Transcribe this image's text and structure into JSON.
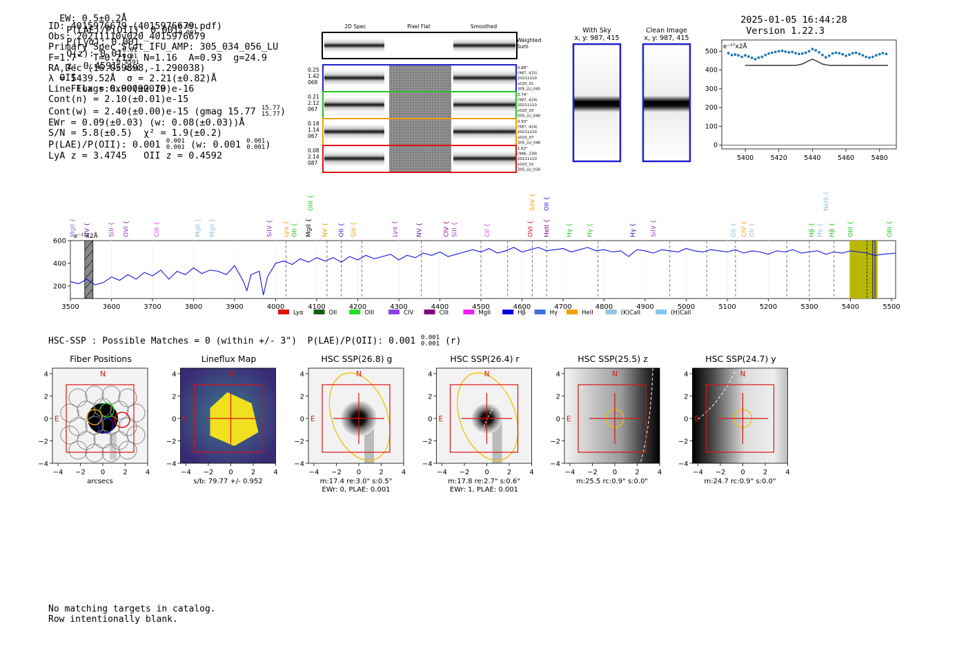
{
  "header": {
    "ew": "EW: 0.5±0.2Å",
    "plae": "P(LAE)/P(OII): 0.001",
    "plae_sup": "0.001",
    "plae_sub": "0.001",
    "plya": "P(Lyα): 0.001",
    "qz": "Q(z): 0.01",
    "qz_sup": "0.01",
    "qz_sub": "0.01",
    "z": "z: 0.4591",
    "z_sup": "0.4591",
    "z_sub": "0.4591",
    "line": "OII",
    "flags": "Flags:0x00000019",
    "datetime": "2025-01-05 16:44:28",
    "version": "Version 1.22.3"
  },
  "info": {
    "id": "ID: 4015976679 (4015976679.pdf)",
    "obs": "Obs: 20211110v020_4015976679",
    "primary": "Primary Spec_Slot_IFU_AMP: 305_034_056_LU",
    "fta": "F=1.7\"  T=0.219  N=1.16  A=0.93  g=24.9",
    "radec": "RA,Dec (16.059898,-1.290038)",
    "lambda": "λ = 5439.52Å  σ = 2.21(±0.82)Å",
    "lineflux": "LineFlux = 8.90(±2.70)e-16",
    "contn": "Cont(n) = 2.10(±0.01)e-15",
    "contw": "Cont(w) = 2.40(±0.00)e-15 (gmag 15.77",
    "contw_sup": "15.77",
    "contw_sub": "15.77",
    "ewr": "EWr = 0.09(±0.03) (w: 0.08(±0.03))Å",
    "sn": "S/N = 5.8(±0.5)  χ² = 1.9(±0.2)",
    "plae": "P(LAE)/P(OII): 0.001",
    "plae_sup": "0.001",
    "plae_sub": "0.001",
    "plae_w": "(w: 0.001",
    "plae_w_sup": "0.001",
    "plae_w_sub": "0.001",
    "lya": "LyA z = 3.4745   OII z = 0.4592"
  },
  "cutouts": {
    "col_2d": "2D Spec",
    "col_flat": "Pixel Flat",
    "col_smooth": "Smoothed",
    "weighted": "Weighted",
    "sum": "Sum",
    "rows": [
      {
        "color": "#1f1fd0",
        "left": [
          "0.25",
          "1.42",
          "068"
        ],
        "right": [
          "0.88\"",
          "(987, 415)",
          "20211110",
          "v020_01",
          "305_LU_045"
        ]
      },
      {
        "color": "#20c020",
        "left": [
          "0.21",
          "2.12",
          "067"
        ],
        "right": [
          "0.74\"",
          "(987, 424)",
          "20211110",
          "v020_03",
          "305_LU_046"
        ]
      },
      {
        "color": "#f0a000",
        "left": [
          "0.18",
          "1.14",
          "067"
        ],
        "right": [
          "0.93\"",
          "(987, 424)",
          "20211110",
          "v020_07",
          "305_LU_046"
        ]
      },
      {
        "color": "#e01010",
        "left": [
          "0.08",
          "2.14",
          "087"
        ],
        "right": [
          "1.62\"",
          "(986, 239)",
          "20211110",
          "v020_02",
          "305_LU_026"
        ]
      }
    ]
  },
  "sky": {
    "with_sky": "With Sky",
    "with_sky_xy": "x, y: 987, 415",
    "clean": "Clean Image",
    "clean_xy": "x, y: 987, 415"
  },
  "zoom_chart": {
    "unit": "e⁻¹⁷x2Å",
    "yticks": [
      "0",
      "100",
      "200",
      "300",
      "400",
      "500"
    ],
    "xticks": [
      "5400",
      "5420",
      "5440",
      "5460",
      "5480"
    ]
  },
  "chart_data": [
    {
      "type": "scatter",
      "x": [
        5390,
        5392,
        5394,
        5396,
        5398,
        5400,
        5402,
        5404,
        5406,
        5408,
        5410,
        5412,
        5414,
        5416,
        5418,
        5420,
        5422,
        5424,
        5426,
        5428,
        5430,
        5432,
        5434,
        5436,
        5438,
        5440,
        5442,
        5444,
        5446,
        5448,
        5450,
        5452,
        5454,
        5456,
        5458,
        5460,
        5462,
        5464,
        5466,
        5468,
        5470,
        5472,
        5474,
        5476,
        5478,
        5480,
        5482,
        5484
      ],
      "values": [
        490,
        480,
        482,
        478,
        470,
        478,
        472,
        465,
        458,
        466,
        470,
        480,
        488,
        492,
        496,
        500,
        502,
        498,
        494,
        496,
        490,
        486,
        488,
        492,
        500,
        512,
        505,
        494,
        480,
        468,
        476,
        488,
        492,
        490,
        484,
        476,
        482,
        490,
        492,
        486,
        478,
        470,
        466,
        470,
        478,
        484,
        490,
        486
      ],
      "model_x": [
        5400,
        5430,
        5434,
        5438,
        5440,
        5442,
        5446,
        5450,
        5485
      ],
      "model_y": [
        425,
        425,
        432,
        450,
        458,
        450,
        432,
        425,
        425
      ],
      "ylim": [
        -20,
        560
      ]
    },
    {
      "type": "line",
      "xlim": [
        3500,
        5510
      ],
      "ylim": [
        90,
        600
      ],
      "xticks": [
        "3500",
        "3600",
        "3700",
        "3800",
        "3900",
        "4000",
        "4100",
        "4200",
        "4300",
        "4400",
        "4500",
        "4600",
        "4700",
        "4800",
        "4900",
        "5000",
        "5100",
        "5200",
        "5300",
        "5400",
        "5500"
      ],
      "yticks": [
        "200",
        "400",
        "600"
      ],
      "unit": "e⁻¹⁷x2Å",
      "x": [
        3500,
        3520,
        3540,
        3560,
        3580,
        3600,
        3620,
        3640,
        3660,
        3680,
        3700,
        3720,
        3740,
        3760,
        3780,
        3800,
        3820,
        3840,
        3860,
        3880,
        3900,
        3920,
        3930,
        3940,
        3960,
        3970,
        3980,
        4000,
        4020,
        4040,
        4060,
        4080,
        4100,
        4120,
        4140,
        4160,
        4180,
        4200,
        4220,
        4240,
        4260,
        4280,
        4300,
        4320,
        4340,
        4360,
        4380,
        4400,
        4420,
        4440,
        4460,
        4480,
        4500,
        4520,
        4540,
        4560,
        4580,
        4600,
        4620,
        4640,
        4660,
        4680,
        4700,
        4720,
        4740,
        4760,
        4780,
        4800,
        4820,
        4840,
        4860,
        4880,
        4900,
        4920,
        4940,
        4960,
        4980,
        5000,
        5020,
        5040,
        5060,
        5080,
        5100,
        5120,
        5140,
        5160,
        5180,
        5200,
        5220,
        5240,
        5260,
        5280,
        5300,
        5320,
        5340,
        5360,
        5380,
        5400,
        5420,
        5440,
        5460,
        5480,
        5510
      ],
      "values": [
        240,
        220,
        260,
        210,
        230,
        280,
        250,
        300,
        260,
        320,
        290,
        340,
        260,
        330,
        300,
        360,
        310,
        340,
        330,
        300,
        380,
        250,
        160,
        300,
        330,
        120,
        280,
        400,
        420,
        390,
        440,
        410,
        450,
        420,
        450,
        410,
        460,
        430,
        470,
        440,
        460,
        480,
        430,
        470,
        450,
        490,
        470,
        500,
        460,
        480,
        500,
        520,
        500,
        530,
        490,
        510,
        540,
        500,
        520,
        540,
        510,
        520,
        530,
        500,
        520,
        540,
        510,
        520,
        500,
        510,
        460,
        520,
        510,
        490,
        520,
        510,
        500,
        530,
        510,
        500,
        520,
        510,
        500,
        520,
        490,
        510,
        500,
        480,
        510,
        500,
        520,
        490,
        500,
        510,
        480,
        500,
        490,
        510,
        500,
        490,
        470,
        480,
        490
      ]
    }
  ],
  "line_labels": [
    {
      "text": "MgII",
      "x": 3510,
      "color": "#8080d0",
      "tier": 0
    },
    {
      "text": "NV",
      "x": 3545,
      "color": "#6020a0",
      "tier": 0
    },
    {
      "text": "SiII",
      "x": 3605,
      "color": "#a040c0",
      "tier": 0
    },
    {
      "text": "OVI",
      "x": 3640,
      "color": "#9030c0",
      "tier": 0
    },
    {
      "text": "CIII",
      "x": 3715,
      "color": "#e040e0",
      "tier": 0
    },
    {
      "text": "MgII",
      "x": 3815,
      "color": "#90c0e0",
      "tier": 0
    },
    {
      "text": "MgII",
      "x": 3850,
      "color": "#90c0e0",
      "tier": 0
    },
    {
      "text": "SiIV",
      "x": 3990,
      "color": "#9030c0",
      "tier": 0
    },
    {
      "text": "Lyα",
      "x": 4030,
      "color": "#f0a000",
      "tier": 0
    },
    {
      "text": "OII",
      "x": 4050,
      "color": "#20c020",
      "tier": 0
    },
    {
      "text": "MgII",
      "x": 4085,
      "color": "#000000",
      "tier": 0
    },
    {
      "text": "OIII",
      "x": 4090,
      "color": "#20c020",
      "tier": 1
    },
    {
      "text": "NV",
      "x": 4125,
      "color": "#f0a000",
      "tier": 0
    },
    {
      "text": "OII",
      "x": 4165,
      "color": "#1f1fd0",
      "tier": 0
    },
    {
      "text": "SiII",
      "x": 4195,
      "color": "#f0a000",
      "tier": 0
    },
    {
      "text": "Lyα",
      "x": 4295,
      "color": "#a040c0",
      "tier": 0
    },
    {
      "text": "NV",
      "x": 4355,
      "color": "#6020a0",
      "tier": 0
    },
    {
      "text": "CIV",
      "x": 4420,
      "color": "#800080",
      "tier": 0
    },
    {
      "text": "SiII",
      "x": 4440,
      "color": "#a040c0",
      "tier": 0
    },
    {
      "text": "CII",
      "x": 4520,
      "color": "#e040e0",
      "tier": 0
    },
    {
      "text": "OVI",
      "x": 4625,
      "color": "#d01010",
      "tier": 0
    },
    {
      "text": "SiIV",
      "x": 4630,
      "color": "#f0a000",
      "tier": 1
    },
    {
      "text": "OII",
      "x": 4665,
      "color": "#1f1fd0",
      "tier": 1
    },
    {
      "text": "HeII",
      "x": 4665,
      "color": "#800080",
      "tier": 0
    },
    {
      "text": "Hγ",
      "x": 4720,
      "color": "#20c020",
      "tier": 0
    },
    {
      "text": "Hγ",
      "x": 4770,
      "color": "#20c020",
      "tier": 0
    },
    {
      "text": "Hγ",
      "x": 4875,
      "color": "#1f1fd0",
      "tier": 0
    },
    {
      "text": "SiIV",
      "x": 4925,
      "color": "#a040c0",
      "tier": 0
    },
    {
      "text": "OII",
      "x": 5120,
      "color": "#90c0e0",
      "tier": 0
    },
    {
      "text": "CIV",
      "x": 5145,
      "color": "#f0a000",
      "tier": 0
    },
    {
      "text": "OII",
      "x": 5165,
      "color": "#90c0e0",
      "tier": 0
    },
    {
      "text": "NeIII",
      "x": 5345,
      "color": "#90c0e0",
      "tier": 1
    },
    {
      "text": "Hβ",
      "x": 5310,
      "color": "#20c020",
      "tier": 0
    },
    {
      "text": "Hγ",
      "x": 5330,
      "color": "#90c0e0",
      "tier": 0
    },
    {
      "text": "Hβ",
      "x": 5360,
      "color": "#20c020",
      "tier": 0
    },
    {
      "text": "OIII",
      "x": 5405,
      "color": "#20c020",
      "tier": 0
    },
    {
      "text": "OIII",
      "x": 5500,
      "color": "#20c020",
      "tier": 0
    }
  ],
  "legend": [
    {
      "label": "Lyα",
      "color": "#e01010"
    },
    {
      "label": "OII",
      "color": "#106010"
    },
    {
      "label": "OIII",
      "color": "#20e020"
    },
    {
      "label": "CIV",
      "color": "#9040e0"
    },
    {
      "label": "CIII",
      "color": "#800080"
    },
    {
      "label": "MgII",
      "color": "#f020f0"
    },
    {
      "label": "Hβ",
      "color": "#0000e0"
    },
    {
      "label": "Hγ",
      "color": "#4070e0"
    },
    {
      "label": "HeII",
      "color": "#f0a000"
    },
    {
      "label": "(K)CaII",
      "color": "#90c8e8"
    },
    {
      "label": "(H)CaII",
      "color": "#80c8f0"
    }
  ],
  "hsc": {
    "title": "HSC-SSP : Possible Matches = 0 (within +/- 3\")  P(LAE)/P(OII): 0.001",
    "title_sup": "0.001",
    "title_sub": "0.001",
    "title_end": "(r)",
    "axis_ticks": [
      "4",
      "2",
      "0",
      "−2",
      "−4"
    ],
    "panels": [
      {
        "title": "Fiber Positions",
        "n": "N",
        "e": "E",
        "cap1": "arcsecs",
        "cap2": ""
      },
      {
        "title": "Lineflux Map",
        "n": "N",
        "e": "E",
        "cap1": "s/b: 79.77 +/- 0.952",
        "cap2": ""
      },
      {
        "title": "HSC SSP(26.8) g",
        "n": "N",
        "e": "E",
        "cap1": "m:17.4  re:3.0\"  s:0.5\"",
        "cap2": "EWr: 0, PLAE: 0.001"
      },
      {
        "title": "HSC SSP(26.4) r",
        "n": "N",
        "e": "E",
        "cap1": "m:17.8  re:2.7\"  s:0.6\"",
        "cap2": "EWr: 1, PLAE: 0.001"
      },
      {
        "title": "HSC SSP(25.5) z",
        "n": "N",
        "e": "E",
        "cap1": "m:25.5  rc:0.9\"  s:0.0\"",
        "cap2": ""
      },
      {
        "title": "HSC SSP(24.7) y",
        "n": "N",
        "e": "E",
        "cap1": "m:24.7  rc:0.9\"  s:0.0\"",
        "cap2": ""
      }
    ]
  },
  "footer": {
    "line1": "No matching targets in catalog.",
    "line2": "Row intentionally blank."
  }
}
